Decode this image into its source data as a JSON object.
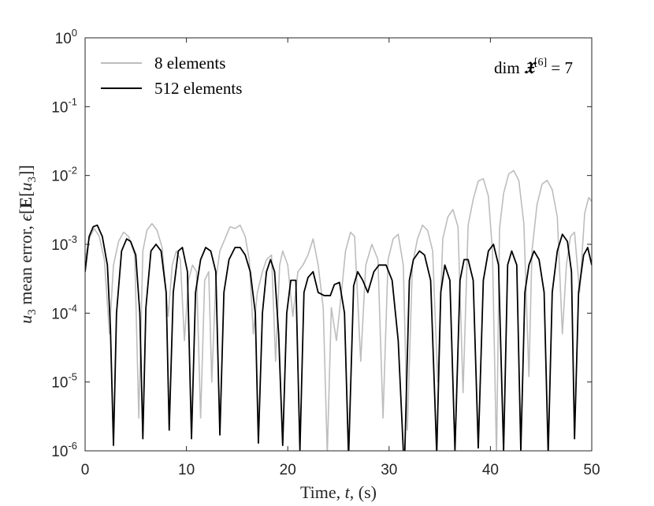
{
  "chart_data": {
    "type": "line",
    "xlabel": "Time, t, (s)",
    "ylabel": "u₃ mean error, ϵ[E[u₃]]",
    "xlim": [
      0,
      50
    ],
    "ylim": [
      1e-06,
      1
    ],
    "yscale": "log",
    "grid": false,
    "legend_position": "top-left",
    "annotation": "dim 𝔛[6] = 7",
    "x_ticks": [
      "0",
      "10",
      "20",
      "30",
      "40",
      "50"
    ],
    "y_ticks": [
      {
        "base": "10",
        "exp": "-6"
      },
      {
        "base": "10",
        "exp": "-5"
      },
      {
        "base": "10",
        "exp": "-4"
      },
      {
        "base": "10",
        "exp": "-3"
      },
      {
        "base": "10",
        "exp": "-2"
      },
      {
        "base": "10",
        "exp": "-1"
      },
      {
        "base": "10",
        "exp": "0"
      }
    ],
    "series": [
      {
        "name": "8 elements",
        "color": "#bdbdbd",
        "x": [
          0,
          0.4,
          0.9,
          1.4,
          1.9,
          2.4,
          2.8,
          3.3,
          3.8,
          4.3,
          4.9,
          5.3,
          5.7,
          6.1,
          6.6,
          7.1,
          7.6,
          8.2,
          8.6,
          9.0,
          9.4,
          9.8,
          10.2,
          10.6,
          11.0,
          11.4,
          11.8,
          12.2,
          12.5,
          12.9,
          13.3,
          13.8,
          14.3,
          14.8,
          15.3,
          15.8,
          16.2,
          16.6,
          17.0,
          17.5,
          17.9,
          18.4,
          18.8,
          19.2,
          19.5,
          20.0,
          20.5,
          21.0,
          21.5,
          22.0,
          22.5,
          23.0,
          23.5,
          23.9,
          24.3,
          24.8,
          25.3,
          25.7,
          26.2,
          26.6,
          27.2,
          27.7,
          28.3,
          28.9,
          29.4,
          29.9,
          30.4,
          30.9,
          31.4,
          31.8,
          32.3,
          32.8,
          33.3,
          33.8,
          34.3,
          34.8,
          35.3,
          35.8,
          36.3,
          36.8,
          37.3,
          37.8,
          38.3,
          38.8,
          39.3,
          39.8,
          40.2,
          40.6,
          40.9,
          41.3,
          41.8,
          42.3,
          42.8,
          43.3,
          43.8,
          44.1,
          44.6,
          45.1,
          45.6,
          46.1,
          46.6,
          47.1,
          47.5,
          47.9,
          48.3,
          48.8,
          49.3,
          49.7,
          50.0
        ],
        "y": [
          0.0006,
          0.0012,
          0.0017,
          0.0013,
          0.0006,
          5e-05,
          0.0005,
          0.0011,
          0.0015,
          0.0013,
          0.0007,
          3e-06,
          0.0008,
          0.0016,
          0.002,
          0.0016,
          0.0009,
          9e-05,
          0.0005,
          0.0008,
          0.0006,
          4e-05,
          0.0003,
          0.0005,
          0.0004,
          3e-06,
          0.0003,
          0.0004,
          1e-05,
          0.0003,
          0.0008,
          0.0012,
          0.0018,
          0.0017,
          0.0019,
          0.0013,
          0.0006,
          5e-05,
          0.0002,
          0.0004,
          0.0006,
          0.0007,
          2e-05,
          0.0005,
          0.0008,
          0.0005,
          9e-05,
          0.0004,
          0.0005,
          0.0007,
          0.0012,
          0.0005,
          0.00012,
          9e-07,
          0.00012,
          4e-05,
          0.0002,
          0.0008,
          0.0015,
          0.0013,
          2e-05,
          0.0005,
          0.001,
          0.0006,
          3e-06,
          0.0006,
          0.0012,
          0.0014,
          0.0005,
          2e-06,
          0.0005,
          0.0012,
          0.0019,
          0.0016,
          0.0008,
          1e-05,
          0.0012,
          0.0025,
          0.0032,
          0.0018,
          7e-06,
          0.0019,
          0.0045,
          0.0083,
          0.009,
          0.005,
          0.0008,
          8e-07,
          0.0017,
          0.0055,
          0.0105,
          0.0118,
          0.0085,
          0.002,
          1.2e-05,
          0.0008,
          0.0038,
          0.0075,
          0.0085,
          0.0062,
          0.0025,
          5e-05,
          0.0005,
          0.0013,
          0.0015,
          0.0002,
          0.0028,
          0.0048,
          0.0042
        ]
      },
      {
        "name": "512 elements",
        "color": "#000000",
        "x": [
          0,
          0.4,
          0.8,
          1.2,
          1.7,
          2.2,
          2.5,
          2.8,
          3.1,
          3.6,
          4.1,
          4.5,
          5.0,
          5.4,
          5.7,
          6.0,
          6.5,
          7.0,
          7.5,
          8.0,
          8.3,
          8.7,
          9.2,
          9.6,
          10.1,
          10.5,
          10.9,
          11.4,
          11.9,
          12.4,
          12.9,
          13.3,
          13.7,
          14.2,
          14.8,
          15.3,
          15.8,
          16.3,
          16.8,
          17.1,
          17.5,
          17.9,
          18.3,
          18.7,
          19.1,
          19.5,
          19.9,
          20.3,
          20.8,
          21.2,
          21.6,
          22.0,
          22.5,
          23.0,
          23.6,
          24.2,
          24.6,
          25.1,
          25.6,
          26.0,
          26.5,
          26.9,
          27.4,
          27.9,
          28.5,
          29.0,
          29.7,
          30.3,
          30.9,
          31.5,
          32.0,
          32.4,
          33.0,
          33.5,
          34.1,
          34.7,
          35.1,
          35.5,
          36.0,
          36.5,
          37.0,
          37.4,
          37.8,
          38.3,
          38.8,
          39.3,
          39.8,
          40.3,
          40.8,
          41.3,
          41.7,
          42.1,
          42.6,
          43.0,
          43.4,
          43.8,
          44.3,
          44.8,
          45.3,
          45.7,
          46.1,
          46.6,
          47.1,
          47.6,
          48.0,
          48.3,
          48.7,
          49.2,
          49.6,
          50.0
        ],
        "y": [
          0.0004,
          0.0013,
          0.0018,
          0.0019,
          0.0013,
          0.0005,
          6e-05,
          1.2e-06,
          0.0001,
          0.0008,
          0.0012,
          0.0011,
          0.0007,
          0.0001,
          1.5e-06,
          0.00012,
          0.0008,
          0.001,
          0.0008,
          0.0002,
          2e-06,
          0.0002,
          0.0008,
          0.0009,
          0.0004,
          1.5e-06,
          0.0002,
          0.0006,
          0.0009,
          0.0008,
          0.0004,
          1.7e-06,
          0.0002,
          0.0006,
          0.0009,
          0.0009,
          0.0007,
          0.0004,
          0.0001,
          1.3e-06,
          0.0001,
          0.0004,
          0.0006,
          0.0004,
          5e-05,
          1.2e-06,
          0.0001,
          0.0003,
          0.0003,
          1e-06,
          0.0002,
          0.00033,
          0.0004,
          0.0002,
          0.00018,
          0.00018,
          0.00026,
          0.00028,
          0.0001,
          8e-07,
          0.00025,
          0.0004,
          0.0003,
          0.0002,
          0.0004,
          0.0005,
          0.0005,
          0.0003,
          4e-05,
          5e-07,
          0.0003,
          0.0006,
          0.0008,
          0.0007,
          0.0003,
          9e-07,
          0.0002,
          0.0005,
          0.0003,
          1e-06,
          0.0003,
          0.0006,
          0.0006,
          0.0003,
          1.1e-06,
          0.0003,
          0.0008,
          0.001,
          0.0005,
          1e-06,
          0.0005,
          0.0008,
          0.0005,
          1e-06,
          0.0002,
          0.0005,
          0.0008,
          0.0006,
          0.0002,
          9e-07,
          0.0002,
          0.0008,
          0.0014,
          0.0011,
          0.0004,
          1.5e-06,
          0.0002,
          0.0007,
          0.0009,
          0.0005
        ]
      }
    ]
  }
}
